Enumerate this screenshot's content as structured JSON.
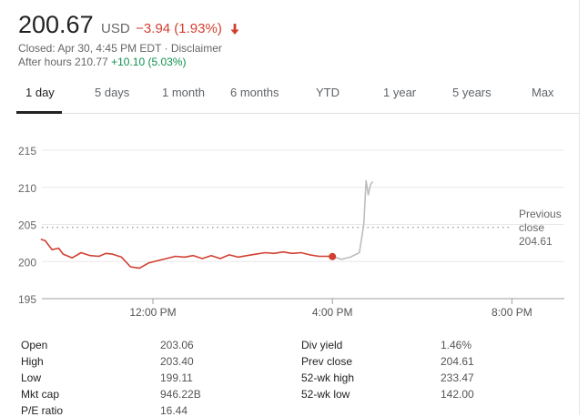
{
  "quote": {
    "price": "200.67",
    "currency": "USD",
    "change": "−3.94 (1.93%)",
    "direction": "down",
    "closed": "Closed: Apr 30, 4:45 PM EDT · Disclaimer",
    "after_hours_label": "After hours 210.77",
    "after_hours_change": "+10.10 (5.03%)"
  },
  "tabs": [
    {
      "label": "1 day",
      "active": true
    },
    {
      "label": "5 days"
    },
    {
      "label": "1 month"
    },
    {
      "label": "6 months"
    },
    {
      "label": "YTD"
    },
    {
      "label": "1 year"
    },
    {
      "label": "5 years"
    },
    {
      "label": "Max"
    }
  ],
  "colors": {
    "down": "#d23f31",
    "up": "#0d904f",
    "after_hours": "#bdbdbd",
    "axis": "#9e9e9e"
  },
  "chart_data": {
    "type": "line",
    "y_ticks": [
      "215",
      "210",
      "205",
      "200",
      "195"
    ],
    "ylim": [
      195,
      215
    ],
    "x_ticks": [
      "12:00 PM",
      "4:00 PM",
      "8:00 PM"
    ],
    "previous_close": {
      "label_line1": "Previous",
      "label_line2": "close",
      "value": "204.61",
      "y": 204.61
    },
    "series": [
      {
        "x": [
          9.5,
          9.6,
          9.75,
          9.9,
          10.0,
          10.2,
          10.4,
          10.6,
          10.8,
          10.95,
          11.1,
          11.3,
          11.5,
          11.7,
          11.9,
          12.1,
          12.3,
          12.5,
          12.7,
          12.9,
          13.1,
          13.3,
          13.5,
          13.7,
          13.9,
          14.1,
          14.3,
          14.5,
          14.7,
          14.9,
          15.1,
          15.3,
          15.5,
          15.7,
          15.9,
          16.0
        ],
        "y": [
          203.0,
          202.8,
          201.6,
          201.8,
          201.0,
          200.5,
          201.2,
          200.8,
          200.7,
          201.1,
          201.0,
          200.6,
          199.3,
          199.1,
          199.8,
          200.1,
          200.4,
          200.7,
          200.6,
          200.8,
          200.4,
          200.8,
          200.4,
          200.9,
          200.6,
          200.8,
          201.0,
          201.2,
          201.1,
          201.3,
          201.1,
          201.2,
          200.9,
          200.7,
          200.7,
          200.67
        ]
      },
      {
        "x": [
          16.0,
          16.2,
          16.4,
          16.6,
          16.7,
          16.75,
          16.8,
          16.85,
          16.9
        ],
        "y": [
          200.67,
          200.3,
          200.6,
          201.2,
          205.0,
          210.9,
          209.0,
          210.4,
          210.77
        ]
      }
    ],
    "grid": "dotted"
  },
  "stats": {
    "left": [
      {
        "label": "Open",
        "value": "203.06"
      },
      {
        "label": "High",
        "value": "203.40"
      },
      {
        "label": "Low",
        "value": "199.11"
      },
      {
        "label": "Mkt cap",
        "value": "946.22B"
      },
      {
        "label": "P/E ratio",
        "value": "16.44"
      }
    ],
    "right": [
      {
        "label": "Div yield",
        "value": "1.46%"
      },
      {
        "label": "Prev close",
        "value": "204.61"
      },
      {
        "label": "52-wk high",
        "value": "233.47"
      },
      {
        "label": "52-wk low",
        "value": "142.00"
      }
    ]
  }
}
